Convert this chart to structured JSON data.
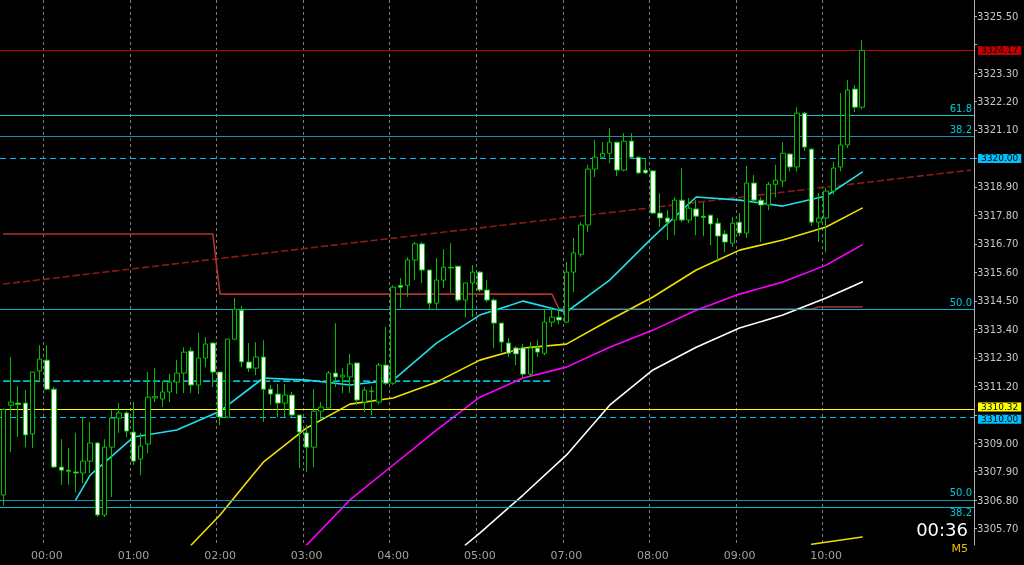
{
  "chart_data": {
    "type": "candlestick",
    "categories": [
      null,
      null,
      null,
      null,
      null,
      null,
      "00:00",
      null,
      null,
      null,
      null,
      null,
      null,
      null,
      null,
      null,
      null,
      null,
      "01:00",
      null,
      null,
      null,
      null,
      null,
      null,
      null,
      null,
      null,
      null,
      null,
      "02:00",
      null,
      null,
      null,
      null,
      null,
      null,
      null,
      null,
      null,
      null,
      null,
      "03:00",
      null,
      null,
      null,
      null,
      null,
      null,
      null,
      null,
      null,
      null,
      null,
      "04:00",
      null,
      null,
      null,
      null,
      null,
      null,
      null,
      null,
      null,
      null,
      null,
      "05:00",
      null,
      null,
      null,
      null,
      null,
      null,
      null,
      null,
      null,
      null,
      null,
      "07:00",
      null,
      null,
      null,
      null,
      null,
      null,
      null,
      null,
      null,
      null,
      null,
      "08:00",
      null,
      null,
      null,
      null,
      null,
      null,
      null,
      null,
      null,
      null,
      null,
      "09:00",
      null,
      null,
      null,
      null,
      null,
      null,
      null,
      null,
      null,
      null,
      null,
      "10:00",
      null,
      null,
      null,
      null,
      null,
      null,
      null,
      null,
      null,
      null,
      null,
      null,
      null,
      null,
      null,
      null,
      null,
      null,
      null,
      null
    ],
    "ylim": [
      3305.07,
      3326.12
    ],
    "yticks": [
      {
        "value": 3325.5,
        "label": "3325.50"
      },
      {
        "value": 3324.4,
        "label": null
      },
      {
        "value": 3323.3,
        "label": "3323.30"
      },
      {
        "value": 3322.2,
        "label": "3322.20"
      },
      {
        "value": 3321.1,
        "label": "3321.10"
      },
      {
        "value": 3320.0,
        "label": null
      },
      {
        "value": 3318.9,
        "label": "3318.90"
      },
      {
        "value": 3317.8,
        "label": "3317.80"
      },
      {
        "value": 3316.7,
        "label": "3316.70"
      },
      {
        "value": 3315.6,
        "label": "3315.60"
      },
      {
        "value": 3314.5,
        "label": "3314.50"
      },
      {
        "value": 3313.4,
        "label": "3313.40"
      },
      {
        "value": 3312.3,
        "label": "3312.30"
      },
      {
        "value": 3311.2,
        "label": "3311.20"
      },
      {
        "value": 3310.1,
        "label": null
      },
      {
        "value": 3309.0,
        "label": "3309.00"
      },
      {
        "value": 3307.9,
        "label": "3307.90"
      },
      {
        "value": 3306.8,
        "label": "3306.80"
      },
      {
        "value": 3305.7,
        "label": "3305.70"
      }
    ],
    "grid": "x",
    "marker": "none",
    "series": [
      {
        "type": "line",
        "color": "#8b1a1a",
        "line_style": "dashed",
        "values": [
          3315.15,
          null,
          null,
          null,
          null,
          null,
          null,
          null,
          null,
          null,
          null,
          null,
          null,
          null,
          null,
          null,
          null,
          null,
          null,
          null,
          null,
          null,
          null,
          null,
          null,
          null,
          null,
          null,
          null,
          null,
          null,
          null,
          null,
          null,
          null,
          null,
          null,
          null,
          null,
          null,
          null,
          null,
          null,
          null,
          null,
          null,
          null,
          null,
          null,
          null,
          null,
          null,
          null,
          null,
          null,
          null,
          null,
          null,
          null,
          null,
          null,
          null,
          null,
          null,
          null,
          null,
          null,
          null,
          null,
          null,
          null,
          null,
          null,
          null,
          null,
          null,
          null,
          null,
          null,
          null,
          null,
          null,
          null,
          null,
          null,
          null,
          null,
          null,
          null,
          null,
          null,
          null,
          null,
          null,
          null,
          null,
          null,
          null,
          null,
          null,
          null,
          null,
          null,
          null,
          null,
          null,
          null,
          null,
          null,
          null,
          null,
          null,
          null,
          null,
          null,
          null,
          null,
          null,
          null,
          null,
          null,
          null,
          null,
          null,
          null,
          null,
          null,
          null,
          null,
          null,
          null,
          null,
          null,
          null,
          3319.55
        ]
      },
      {
        "type": "line",
        "color": "#00bcd4",
        "line_style": "dashed",
        "values": [
          3311.4,
          null,
          null,
          null,
          null,
          null,
          null,
          null,
          null,
          null,
          null,
          null,
          null,
          null,
          null,
          null,
          null,
          null,
          null,
          null,
          null,
          null,
          null,
          null,
          null,
          null,
          null,
          null,
          null,
          null,
          null,
          null,
          null,
          null,
          null,
          null,
          null,
          null,
          null,
          null,
          null,
          null,
          null,
          null,
          null,
          null,
          null,
          null,
          null,
          null,
          null,
          null,
          null,
          null,
          null,
          null,
          null,
          null,
          null,
          null,
          null,
          null,
          null,
          null,
          null,
          null,
          null,
          null,
          null,
          null,
          null,
          null,
          null,
          null,
          null,
          null,
          3311.4,
          null,
          null,
          null,
          null,
          null,
          null,
          null,
          null,
          null,
          null,
          null,
          null,
          null,
          null,
          null,
          null,
          null,
          null,
          null,
          null,
          null,
          null,
          null,
          null,
          null,
          null,
          null,
          null,
          null,
          null,
          null,
          null,
          null,
          null,
          null,
          null,
          null,
          null,
          null,
          null,
          null,
          null,
          null,
          null,
          null,
          null,
          null,
          null,
          null,
          null,
          null,
          null,
          null,
          null,
          null,
          null,
          null,
          null
        ]
      },
      {
        "type": "line",
        "color": "#b03030",
        "line_style": "solid",
        "values": [
          3317.08,
          null,
          null,
          null,
          null,
          null,
          null,
          null,
          null,
          null,
          null,
          null,
          null,
          null,
          null,
          null,
          null,
          null,
          null,
          null,
          null,
          null,
          null,
          null,
          null,
          null,
          null,
          null,
          null,
          3317.08,
          3314.76,
          null,
          null,
          null,
          null,
          null,
          null,
          null,
          null,
          null,
          null,
          null,
          null,
          null,
          null,
          null,
          null,
          null,
          null,
          null,
          null,
          null,
          null,
          null,
          null,
          null,
          null,
          null,
          null,
          null,
          null,
          null,
          null,
          null,
          null,
          null,
          null,
          null,
          null,
          null,
          null,
          null,
          null,
          null,
          null,
          null,
          3314.76,
          3314.18,
          null,
          null,
          null,
          null,
          null,
          null,
          null,
          null,
          null,
          null,
          null,
          null,
          null,
          null,
          null,
          null,
          null,
          null,
          null,
          null,
          null,
          null,
          null,
          null,
          null,
          null,
          null,
          null,
          null,
          null,
          null,
          null,
          null,
          null,
          3314.18,
          3314.26,
          null,
          null,
          null,
          null,
          null,
          3314.26,
          null,
          null,
          null,
          null,
          null,
          null,
          null,
          null,
          null,
          null,
          null,
          null,
          null,
          null,
          null
        ]
      },
      {
        "type": "line",
        "color": "#ffffff",
        "line_style": "solid",
        "values": [
          null,
          null,
          null,
          null,
          null,
          null,
          null,
          null,
          null,
          null,
          null,
          null,
          null,
          null,
          null,
          null,
          null,
          null,
          null,
          null,
          null,
          null,
          null,
          null,
          null,
          null,
          null,
          null,
          null,
          null,
          null,
          null,
          null,
          null,
          null,
          null,
          null,
          null,
          null,
          null,
          null,
          null,
          null,
          null,
          null,
          null,
          null,
          null,
          null,
          null,
          null,
          null,
          null,
          null,
          null,
          null,
          null,
          null,
          null,
          null,
          null,
          null,
          null,
          null,
          3305.07,
          null,
          3305.53,
          null,
          null,
          null,
          null,
          null,
          3307.0,
          null,
          null,
          null,
          null,
          null,
          3308.54,
          null,
          null,
          null,
          null,
          null,
          3310.47,
          null,
          null,
          null,
          null,
          null,
          3311.83,
          null,
          null,
          null,
          null,
          null,
          3312.71,
          null,
          null,
          null,
          null,
          null,
          3313.45,
          null,
          null,
          null,
          null,
          null,
          3313.95,
          null,
          null,
          null,
          null,
          null,
          3314.61,
          null,
          null,
          null,
          null,
          3315.23,
          null,
          null,
          null,
          null,
          null,
          null,
          null,
          null,
          null,
          null,
          null,
          null,
          null,
          null,
          null
        ]
      },
      {
        "type": "line",
        "color": "#ff00ff",
        "line_style": "solid",
        "values": [
          null,
          null,
          null,
          null,
          null,
          null,
          null,
          null,
          null,
          null,
          null,
          null,
          null,
          null,
          null,
          null,
          null,
          null,
          null,
          null,
          null,
          null,
          null,
          null,
          null,
          null,
          null,
          null,
          null,
          null,
          null,
          null,
          null,
          null,
          null,
          null,
          null,
          null,
          null,
          null,
          null,
          null,
          3305.07,
          null,
          null,
          null,
          null,
          null,
          3306.81,
          null,
          null,
          null,
          null,
          null,
          3308.16,
          null,
          null,
          null,
          null,
          null,
          3309.51,
          null,
          null,
          null,
          null,
          null,
          3310.78,
          null,
          null,
          null,
          null,
          null,
          3311.52,
          null,
          null,
          null,
          null,
          null,
          3311.94,
          null,
          null,
          null,
          null,
          null,
          3312.71,
          null,
          null,
          null,
          null,
          null,
          3313.37,
          null,
          null,
          null,
          null,
          null,
          3314.14,
          null,
          null,
          null,
          null,
          null,
          3314.76,
          null,
          null,
          null,
          null,
          null,
          3315.23,
          null,
          null,
          null,
          null,
          null,
          3315.88,
          null,
          null,
          null,
          null,
          3316.66,
          null,
          null,
          null,
          null,
          null,
          null,
          null,
          null,
          null,
          null,
          null,
          null,
          null,
          null,
          null
        ]
      },
      {
        "type": "line",
        "color": "#f0e000",
        "line_style": "solid",
        "values": [
          null,
          null,
          null,
          null,
          null,
          null,
          null,
          null,
          null,
          null,
          null,
          null,
          null,
          null,
          null,
          null,
          null,
          null,
          null,
          null,
          null,
          null,
          null,
          null,
          null,
          null,
          3305.07,
          null,
          null,
          null,
          3306.23,
          null,
          null,
          null,
          null,
          null,
          3308.27,
          null,
          null,
          null,
          null,
          null,
          3309.59,
          null,
          null,
          null,
          null,
          null,
          3310.51,
          null,
          null,
          null,
          null,
          null,
          3310.75,
          null,
          null,
          null,
          null,
          null,
          3311.36,
          null,
          null,
          null,
          null,
          null,
          3312.21,
          null,
          null,
          null,
          null,
          null,
          3312.68,
          null,
          null,
          null,
          null,
          null,
          3312.83,
          null,
          null,
          null,
          null,
          null,
          3313.76,
          null,
          null,
          null,
          null,
          null,
          3314.65,
          null,
          null,
          null,
          null,
          null,
          3315.69,
          null,
          null,
          null,
          null,
          null,
          3316.46,
          null,
          null,
          null,
          null,
          null,
          3316.85,
          null,
          null,
          null,
          null,
          null,
          3317.35,
          null,
          null,
          null,
          null,
          3318.08,
          null,
          null,
          null,
          null,
          null,
          null,
          null,
          null,
          null,
          null,
          null,
          null,
          null,
          null,
          null
        ]
      },
      {
        "type": "line",
        "color": "#f0e000",
        "line_style": "solid",
        "values": [
          null,
          null,
          null,
          null,
          null,
          null,
          null,
          null,
          null,
          null,
          null,
          null,
          null,
          null,
          null,
          null,
          null,
          null,
          null,
          null,
          null,
          null,
          null,
          null,
          null,
          null,
          null,
          null,
          null,
          null,
          null,
          null,
          null,
          null,
          null,
          null,
          null,
          null,
          null,
          null,
          null,
          null,
          null,
          null,
          null,
          null,
          null,
          null,
          null,
          null,
          null,
          null,
          null,
          null,
          null,
          null,
          null,
          null,
          null,
          null,
          null,
          null,
          null,
          null,
          null,
          null,
          null,
          null,
          null,
          null,
          null,
          null,
          null,
          null,
          null,
          null,
          null,
          null,
          null,
          null,
          null,
          null,
          null,
          null,
          null,
          null,
          null,
          null,
          null,
          null,
          null,
          null,
          null,
          null,
          null,
          null,
          null,
          null,
          null,
          null,
          null,
          null,
          null,
          null,
          null,
          null,
          null,
          null,
          null,
          null,
          null,
          null,
          3305.1,
          null,
          null,
          null,
          null,
          null,
          null,
          3305.38,
          null,
          null,
          null,
          null,
          null,
          null,
          null,
          null,
          null,
          null,
          null,
          null,
          null,
          null,
          null
        ]
      },
      {
        "type": "line",
        "color": "#20e0f0",
        "line_style": "solid",
        "values": [
          null,
          null,
          null,
          null,
          null,
          null,
          null,
          null,
          null,
          null,
          3306.81,
          null,
          3307.77,
          null,
          null,
          null,
          null,
          null,
          3309.24,
          null,
          null,
          null,
          null,
          null,
          3309.51,
          null,
          null,
          null,
          null,
          null,
          3310.24,
          null,
          null,
          null,
          null,
          null,
          3311.52,
          null,
          null,
          null,
          null,
          null,
          3311.44,
          null,
          null,
          null,
          null,
          null,
          3311.25,
          null,
          null,
          null,
          null,
          null,
          3311.44,
          null,
          null,
          null,
          null,
          null,
          3312.87,
          null,
          null,
          null,
          null,
          null,
          3313.95,
          null,
          null,
          null,
          null,
          null,
          3314.49,
          null,
          null,
          null,
          null,
          null,
          3314.07,
          null,
          null,
          null,
          null,
          null,
          3315.3,
          null,
          null,
          null,
          null,
          null,
          3316.96,
          null,
          null,
          null,
          null,
          null,
          3318.51,
          null,
          null,
          null,
          null,
          null,
          3318.39,
          null,
          null,
          null,
          null,
          null,
          3318.16,
          null,
          null,
          null,
          null,
          null,
          3318.55,
          null,
          null,
          null,
          null,
          3319.47,
          null,
          null,
          null,
          null,
          null,
          null,
          null,
          null,
          null,
          null,
          null,
          null,
          null,
          null,
          null
        ]
      },
      {
        "color": "#00c000",
        "ohlc": [
          [
            3307.0,
            3310.35,
            3306.6,
            3310.3
          ],
          [
            3310.47,
            3312.33,
            3308.66,
            3310.59
          ],
          [
            3310.55,
            3311.21,
            3309.24,
            3310.5
          ],
          [
            3310.55,
            3311.05,
            3308.85,
            3309.32
          ],
          [
            3309.36,
            3311.75,
            3308.81,
            3311.75
          ],
          [
            3311.79,
            3312.79,
            3311.36,
            3312.25
          ],
          [
            3312.21,
            3312.79,
            3311.05,
            3311.09
          ],
          [
            3311.09,
            3311.17,
            3308.04,
            3308.08
          ],
          [
            3308.08,
            3309.16,
            3307.39,
            3307.96
          ],
          [
            3307.96,
            3308.81,
            3307.39,
            3307.92
          ],
          [
            3307.89,
            3309.4,
            3307.1,
            3307.85
          ],
          [
            3307.85,
            3310.01,
            3307.46,
            3308.31
          ],
          [
            3308.31,
            3309.82,
            3307.85,
            3309.01
          ],
          [
            3309.01,
            3309.05,
            3306.15,
            3306.23
          ],
          [
            3306.23,
            3309.16,
            3306.15,
            3308.85
          ],
          [
            3308.85,
            3310.28,
            3306.92,
            3309.97
          ],
          [
            3309.97,
            3310.55,
            3309.4,
            3310.17
          ],
          [
            3310.17,
            3310.24,
            3309.24,
            3309.47
          ],
          [
            3309.43,
            3310.59,
            3308.16,
            3308.31
          ],
          [
            3308.39,
            3309.4,
            3307.77,
            3308.89
          ],
          [
            3308.97,
            3311.75,
            3308.62,
            3310.78
          ],
          [
            3310.75,
            3311.9,
            3310.59,
            3310.8
          ],
          [
            3310.71,
            3311.4,
            3310.4,
            3310.98
          ],
          [
            3310.98,
            3311.67,
            3310.59,
            3311.36
          ],
          [
            3311.36,
            3312.21,
            3310.9,
            3311.71
          ],
          [
            3311.71,
            3312.71,
            3310.94,
            3312.52
          ],
          [
            3312.56,
            3312.71,
            3310.94,
            3311.25
          ],
          [
            3311.25,
            3313.26,
            3310.9,
            3312.29
          ],
          [
            3312.29,
            3313.1,
            3311.94,
            3312.83
          ],
          [
            3312.87,
            3312.9,
            3311.17,
            3311.75
          ],
          [
            3311.75,
            3311.75,
            3309.7,
            3310.01
          ],
          [
            3310.01,
            3313.02,
            3309.97,
            3313.02
          ],
          [
            3313.02,
            3314.61,
            3312.98,
            3314.18
          ],
          [
            3314.14,
            3314.3,
            3311.94,
            3312.14
          ],
          [
            3312.14,
            3312.87,
            3311.75,
            3311.9
          ],
          [
            3311.9,
            3312.9,
            3311.63,
            3312.33
          ],
          [
            3312.33,
            3312.98,
            3309.82,
            3311.09
          ],
          [
            3311.09,
            3311.25,
            3310.48,
            3310.9
          ],
          [
            3310.9,
            3311.29,
            3310.01,
            3310.55
          ],
          [
            3310.55,
            3311.29,
            3310.01,
            3310.86
          ],
          [
            3310.86,
            3310.98,
            3310.01,
            3310.09
          ],
          [
            3310.09,
            3310.09,
            3308.04,
            3309.43
          ],
          [
            3309.4,
            3309.7,
            3307.89,
            3308.85
          ],
          [
            3308.85,
            3311.09,
            3308.08,
            3310.24
          ],
          [
            3310.24,
            3310.59,
            3309.9,
            3310.4
          ],
          [
            3310.36,
            3311.79,
            3310.36,
            3311.71
          ],
          [
            3311.71,
            3313.64,
            3311.17,
            3311.56
          ],
          [
            3311.56,
            3311.9,
            3310.94,
            3311.63
          ],
          [
            3311.56,
            3312.45,
            3310.94,
            3312.06
          ],
          [
            3312.1,
            3312.1,
            3310.48,
            3310.67
          ],
          [
            3310.59,
            3311.17,
            3310.2,
            3311.05
          ],
          [
            3311.0,
            3311.2,
            3310.09,
            3311.02
          ],
          [
            3310.59,
            3312.1,
            3310.5,
            3312.02
          ],
          [
            3312.02,
            3313.49,
            3311.25,
            3311.32
          ],
          [
            3311.32,
            3315.1,
            3311.25,
            3315.03
          ],
          [
            3315.1,
            3315.38,
            3314.22,
            3315.03
          ],
          [
            3315.1,
            3316.19,
            3314.65,
            3316.08
          ],
          [
            3316.08,
            3316.77,
            3315.3,
            3316.7
          ],
          [
            3316.7,
            3316.77,
            3315.19,
            3315.69
          ],
          [
            3315.69,
            3315.69,
            3314.14,
            3314.41
          ],
          [
            3314.41,
            3316.15,
            3314.14,
            3315.3
          ],
          [
            3315.3,
            3316.5,
            3314.99,
            3315.8
          ],
          [
            3315.8,
            3316.73,
            3314.8,
            3315.77
          ],
          [
            3315.84,
            3315.84,
            3314.45,
            3314.53
          ],
          [
            3314.53,
            3315.19,
            3313.87,
            3315.19
          ],
          [
            3315.19,
            3315.88,
            3313.87,
            3315.61
          ],
          [
            3315.61,
            3315.65,
            3314.84,
            3314.92
          ],
          [
            3314.92,
            3315.3,
            3314.45,
            3314.53
          ],
          [
            3314.53,
            3314.6,
            3312.68,
            3313.64
          ],
          [
            3313.64,
            3313.64,
            3312.52,
            3312.91
          ],
          [
            3312.87,
            3313.06,
            3312.33,
            3312.48
          ],
          [
            3312.68,
            3312.75,
            3312.02,
            3312.45
          ],
          [
            3312.68,
            3312.83,
            3311.56,
            3311.67
          ],
          [
            3311.67,
            3312.9,
            3311.56,
            3312.68
          ],
          [
            3312.68,
            3312.98,
            3312.33,
            3312.52
          ],
          [
            3312.48,
            3314.18,
            3312.4,
            3313.68
          ],
          [
            3313.68,
            3314.26,
            3313.49,
            3313.87
          ],
          [
            3313.87,
            3314.26,
            3313.6,
            3313.76
          ],
          [
            3313.68,
            3316.0,
            3313.64,
            3315.61
          ],
          [
            3315.61,
            3316.93,
            3314.84,
            3316.35
          ],
          [
            3316.3,
            3317.54,
            3316.2,
            3317.43
          ],
          [
            3317.43,
            3319.75,
            3317.16,
            3319.59
          ],
          [
            3319.59,
            3320.71,
            3319.28,
            3320.05
          ],
          [
            3320.05,
            3320.63,
            3320.0,
            3320.2
          ],
          [
            3320.2,
            3321.17,
            3319.82,
            3320.63
          ],
          [
            3320.63,
            3320.63,
            3319.32,
            3319.55
          ],
          [
            3319.55,
            3320.98,
            3319.5,
            3320.67
          ],
          [
            3320.67,
            3320.98,
            3320.0,
            3320.05
          ],
          [
            3320.05,
            3320.05,
            3319.4,
            3319.44
          ],
          [
            3319.55,
            3320.0,
            3319.4,
            3319.44
          ],
          [
            3319.52,
            3319.55,
            3317.85,
            3317.89
          ],
          [
            3317.89,
            3318.66,
            3317.35,
            3317.7
          ],
          [
            3317.7,
            3318.0,
            3316.85,
            3317.54
          ],
          [
            3317.62,
            3318.5,
            3317.04,
            3318.39
          ],
          [
            3318.39,
            3319.63,
            3317.54,
            3317.62
          ],
          [
            3317.62,
            3318.47,
            3317.5,
            3318.08
          ],
          [
            3318.05,
            3318.39,
            3317.04,
            3317.77
          ],
          [
            3317.77,
            3318.3,
            3317.0,
            3317.72
          ],
          [
            3317.81,
            3317.81,
            3316.65,
            3317.47
          ],
          [
            3317.5,
            3317.7,
            3316.0,
            3317.0
          ],
          [
            3317.08,
            3317.23,
            3316.38,
            3316.77
          ],
          [
            3316.73,
            3317.74,
            3316.58,
            3317.5
          ],
          [
            3317.54,
            3317.89,
            3317.0,
            3317.12
          ],
          [
            3317.12,
            3319.71,
            3316.93,
            3319.05
          ],
          [
            3319.05,
            3319.36,
            3318.3,
            3318.39
          ],
          [
            3318.39,
            3318.5,
            3316.77,
            3318.2
          ],
          [
            3318.2,
            3319.1,
            3318.0,
            3319.0
          ],
          [
            3319.0,
            3319.75,
            3318.5,
            3319.16
          ],
          [
            3319.13,
            3320.63,
            3318.9,
            3320.2
          ],
          [
            3320.17,
            3320.2,
            3319.5,
            3319.67
          ],
          [
            3319.67,
            3321.98,
            3319.5,
            3321.75
          ],
          [
            3321.75,
            3321.79,
            3320.3,
            3320.44
          ],
          [
            3320.36,
            3320.4,
            3317.4,
            3317.54
          ],
          [
            3317.54,
            3318.66,
            3316.77,
            3317.7
          ],
          [
            3317.7,
            3318.86,
            3316.38,
            3318.74
          ],
          [
            3318.74,
            3319.86,
            3318.6,
            3319.63
          ],
          [
            3319.67,
            3322.53,
            3319.5,
            3320.52
          ],
          [
            3320.52,
            3323.03,
            3320.4,
            3322.64
          ],
          [
            3322.68,
            3322.83,
            3321.79,
            3321.98
          ],
          [
            3321.98,
            3324.57,
            3321.9,
            3324.17
          ],
          null,
          null,
          null,
          null,
          null,
          null,
          null,
          null,
          null,
          null,
          null,
          null,
          null,
          null,
          null
        ]
      }
    ],
    "ref_lines": [
      {
        "axis": "y",
        "value": 3324.17,
        "label": "3324.17",
        "color": "#c00000",
        "line_style": "solid"
      },
      {
        "axis": "y",
        "value": 3321.65,
        "label": null,
        "color": "#00c8d8",
        "line_style": "solid"
      },
      {
        "axis": "y",
        "value": 3320.86,
        "label": null,
        "color": "#1a8fb0",
        "line_style": "solid"
      },
      {
        "axis": "y",
        "value": 3320.0,
        "label": "3320.00",
        "color": "#00bfff",
        "line_style": "dashed"
      },
      {
        "axis": "y",
        "value": 3314.18,
        "label": null,
        "color": "#00b4c8",
        "line_style": "solid"
      },
      {
        "axis": "y",
        "value": 3310.32,
        "label": "3310.32",
        "color": "#ffff00",
        "line_style": "solid"
      },
      {
        "axis": "y",
        "value": 3310.0,
        "label": "3310.00",
        "color": "#00bfff",
        "line_style": "dashed"
      },
      {
        "axis": "y",
        "value": 3306.81,
        "label": null,
        "color": "#1a8fb0",
        "line_style": "solid"
      },
      {
        "axis": "y",
        "value": 3306.54,
        "label": null,
        "color": "#00b4c8",
        "line_style": "solid"
      }
    ],
    "annotations": [
      {
        "text": "61.8",
        "y": 3321.65
      },
      {
        "text": "38.2",
        "y": 3320.86
      },
      {
        "text": "50.0",
        "y": 3314.18
      },
      {
        "text": "50.0",
        "y": 3306.81
      },
      {
        "text": "38.2",
        "y": 3306.54
      },
      "00:36",
      "M5"
    ]
  }
}
